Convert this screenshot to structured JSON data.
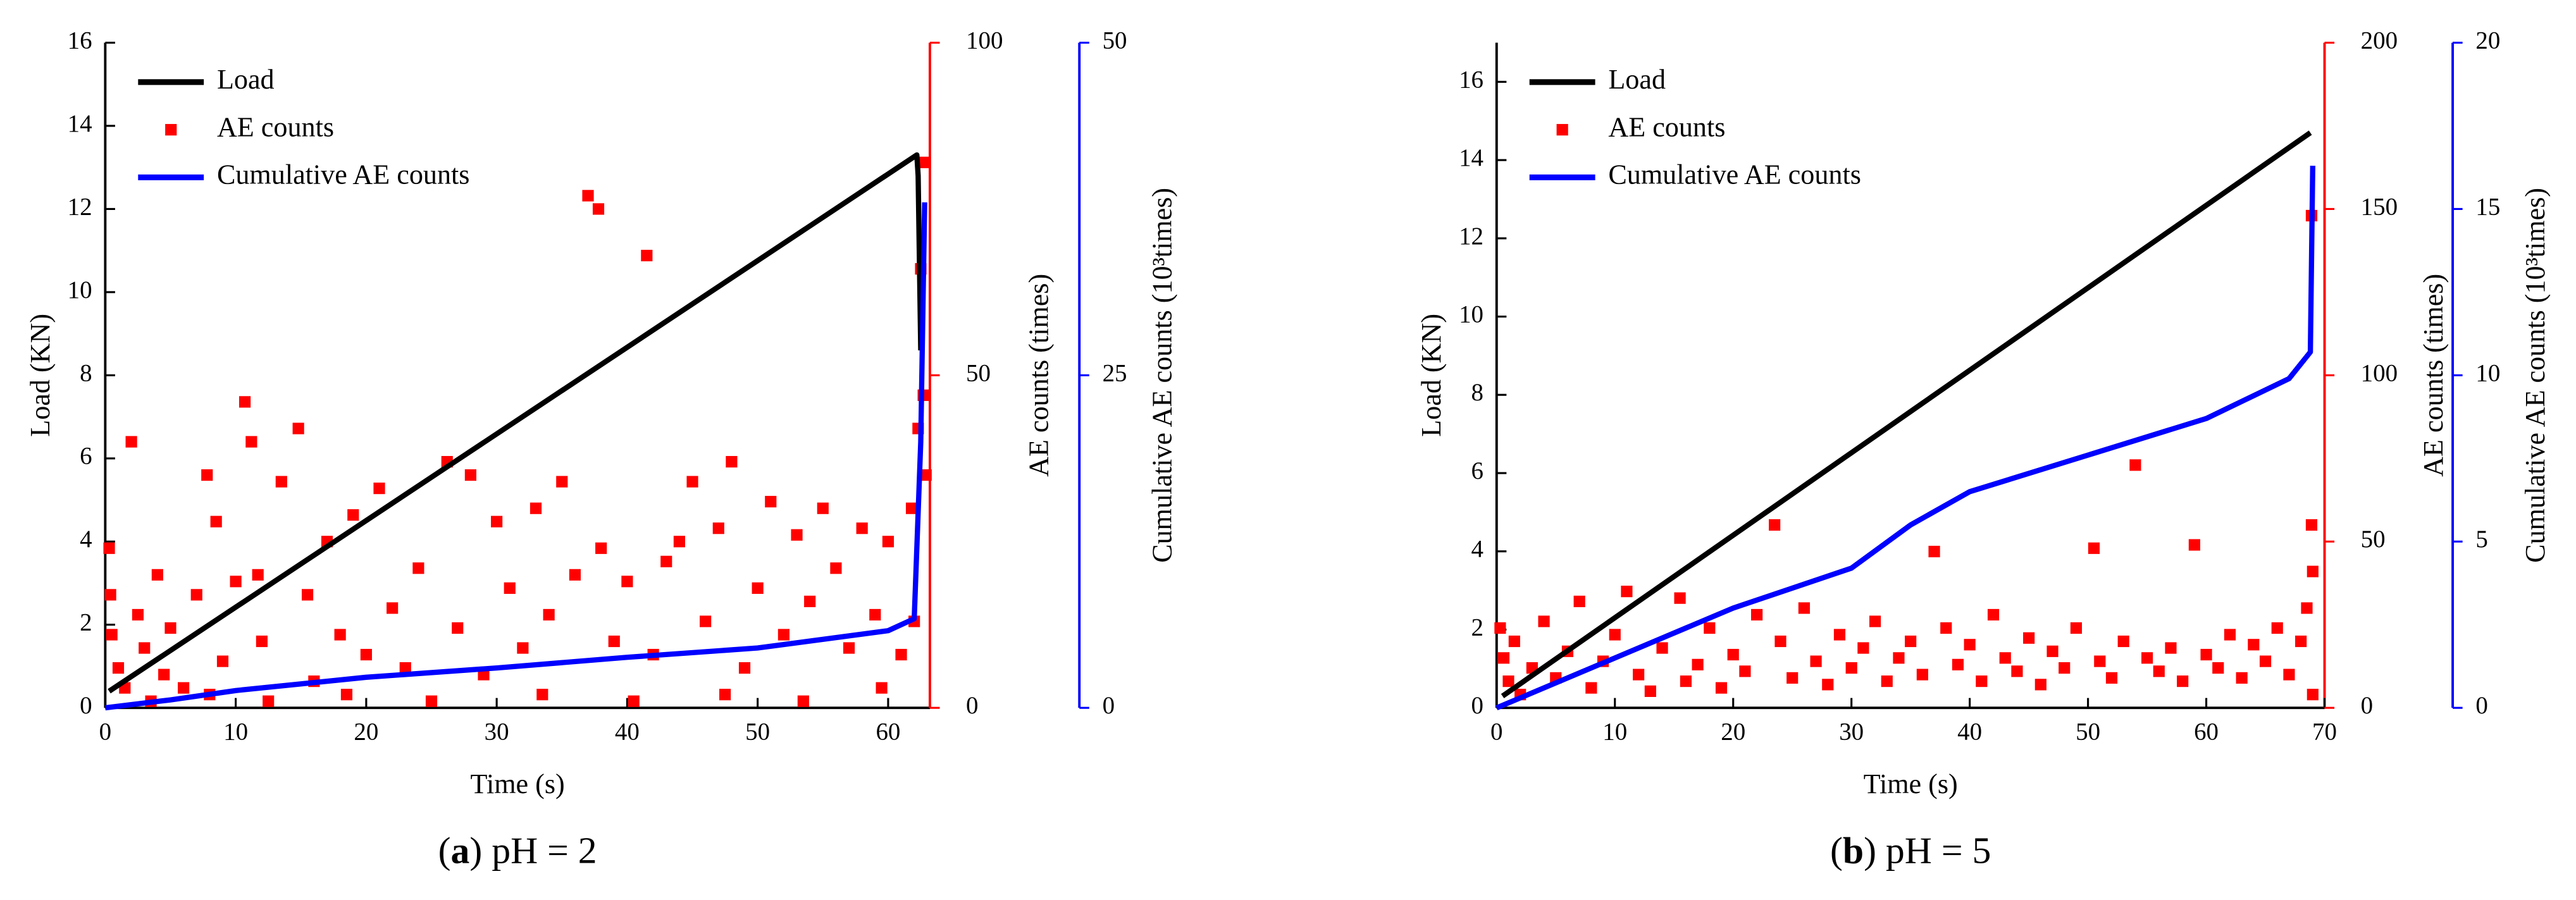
{
  "chart_data": [
    {
      "type": "combo",
      "caption": [
        "(",
        "a",
        ") pH = 2"
      ],
      "xlabel": "Time (s)",
      "ylabel": "Load (KN)",
      "y2label": "AE counts (times)",
      "y3label": "Cumulative AE counts (10³times)",
      "xlim": [
        0,
        63.2
      ],
      "xticks": [
        0,
        10,
        20,
        30,
        40,
        50,
        60
      ],
      "ylim": [
        0,
        16
      ],
      "yticks": [
        0,
        2,
        4,
        6,
        8,
        10,
        12,
        14,
        16
      ],
      "y2lim": [
        0,
        100
      ],
      "y2ticks": [
        0,
        50,
        100
      ],
      "y2color": "#ff0000",
      "y3lim": [
        0,
        50
      ],
      "y3ticks": [
        0,
        25,
        50
      ],
      "y3color": "#0000ff",
      "legend": "upper-left",
      "series": [
        {
          "name": "Load",
          "kind": "line",
          "color": "#000000",
          "x": [
            0.3,
            62.2,
            62.3,
            62.5
          ],
          "values": [
            0.4,
            13.3,
            12.8,
            8.6
          ]
        },
        {
          "name": "AE counts",
          "kind": "scatter",
          "color": "#ff0000",
          "axis": "y2",
          "x": [
            0.3,
            0.4,
            0.5,
            1,
            1.5,
            2,
            2.5,
            3,
            4,
            4.5,
            5,
            6,
            7,
            7.8,
            8.5,
            9,
            10,
            10.7,
            11.2,
            11.7,
            12,
            13.5,
            14.8,
            15.5,
            16,
            17,
            18,
            19,
            20,
            21,
            22,
            23,
            24,
            26.2,
            27,
            28,
            29,
            30,
            31,
            32,
            33,
            34,
            35,
            36,
            37,
            37.8,
            38,
            39,
            40,
            41.5,
            42,
            43,
            44,
            45,
            46,
            47,
            48,
            49,
            50,
            51,
            52,
            53,
            54,
            55,
            56,
            57,
            58,
            59,
            60,
            61,
            61.8,
            62,
            62.3,
            62.5,
            62.7,
            62.8,
            62.9,
            3.5,
            8,
            12.5,
            18.5,
            25,
            33.5,
            40.5,
            47.5,
            53.5,
            59.5
          ],
          "values": [
            24,
            17,
            11,
            6,
            3,
            40,
            14,
            9,
            20,
            5,
            12,
            3,
            17,
            35,
            28,
            7,
            19,
            46,
            40,
            20,
            10,
            34,
            42,
            17,
            4,
            25,
            11,
            29,
            8,
            33,
            15,
            6,
            21,
            37,
            12,
            35,
            5,
            28,
            18,
            9,
            30,
            14,
            34,
            20,
            77,
            75,
            24,
            10,
            19,
            68,
            8,
            22,
            25,
            34,
            13,
            27,
            37,
            6,
            18,
            31,
            11,
            26,
            16,
            30,
            21,
            9,
            27,
            14,
            25,
            8,
            30,
            13,
            42,
            66,
            47,
            82,
            35,
            1,
            2,
            1,
            2,
            1,
            2,
            1,
            2,
            1,
            3
          ]
        },
        {
          "name": "Cumulative AE counts",
          "kind": "line",
          "color": "#0000ff",
          "axis": "y3",
          "x": [
            0,
            5,
            10,
            20,
            30,
            40,
            50,
            60,
            62,
            62.5,
            62.8
          ],
          "values": [
            0,
            0.6,
            1.3,
            2.3,
            3.0,
            3.8,
            4.5,
            5.8,
            6.7,
            20,
            38
          ]
        }
      ]
    },
    {
      "type": "combo",
      "caption": [
        "(",
        "b",
        ") pH = 5"
      ],
      "xlabel": "Time (s)",
      "ylabel": "Load (KN)",
      "y2label": "AE counts (times)",
      "y3label": "Cumulative AE counts (10³times)",
      "xlim": [
        0,
        70
      ],
      "xticks": [
        0,
        10,
        20,
        30,
        40,
        50,
        60,
        70
      ],
      "ylim": [
        0,
        17
      ],
      "yticks": [
        0,
        2,
        4,
        6,
        8,
        10,
        12,
        14,
        16
      ],
      "y2lim": [
        0,
        200
      ],
      "y2ticks": [
        0,
        50,
        100,
        150,
        200
      ],
      "y2color": "#ff0000",
      "y3lim": [
        0,
        20
      ],
      "y3ticks": [
        0,
        5,
        10,
        15,
        20
      ],
      "y3color": "#0000ff",
      "legend": "upper-left",
      "series": [
        {
          "name": "Load",
          "kind": "line",
          "color": "#000000",
          "x": [
            0.5,
            68.8
          ],
          "values": [
            0.3,
            14.7
          ]
        },
        {
          "name": "AE counts",
          "kind": "scatter",
          "color": "#ff0000",
          "axis": "y2",
          "x": [
            0.3,
            0.6,
            1,
            1.5,
            2,
            3,
            4,
            5,
            6,
            7,
            8,
            9,
            10,
            11,
            12,
            13,
            14,
            15.5,
            16,
            17,
            18,
            19,
            20,
            21,
            22,
            23.5,
            24,
            25,
            26,
            27,
            28,
            29,
            30,
            31,
            32,
            33,
            34,
            35,
            36,
            37,
            38,
            39,
            40,
            41,
            42,
            43,
            44,
            45,
            46,
            47,
            48,
            49,
            50.5,
            51,
            52,
            53,
            54,
            55,
            56,
            57,
            58,
            59,
            60,
            61,
            62,
            63,
            64,
            65,
            66,
            67,
            68,
            68.5,
            68.9,
            68.9,
            69,
            69
          ],
          "values": [
            24,
            15,
            8,
            20,
            4,
            12,
            26,
            9,
            17,
            32,
            6,
            14,
            22,
            35,
            10,
            5,
            18,
            33,
            8,
            13,
            24,
            6,
            16,
            11,
            28,
            55,
            20,
            9,
            30,
            14,
            7,
            22,
            12,
            18,
            26,
            8,
            15,
            20,
            10,
            47,
            24,
            13,
            19,
            8,
            28,
            15,
            11,
            21,
            7,
            17,
            12,
            24,
            48,
            14,
            9,
            20,
            73,
            15,
            11,
            18,
            8,
            49,
            16,
            12,
            22,
            9,
            19,
            14,
            24,
            10,
            20,
            30,
            148,
            55,
            41,
            4
          ]
        },
        {
          "name": "Cumulative AE counts",
          "kind": "line",
          "color": "#0000ff",
          "axis": "y3",
          "x": [
            0,
            10,
            20,
            30,
            35,
            40,
            50,
            60,
            67,
            68.8,
            69
          ],
          "values": [
            0,
            1.5,
            3.0,
            4.2,
            5.5,
            6.5,
            7.6,
            8.7,
            9.9,
            10.7,
            16.3
          ]
        }
      ]
    }
  ]
}
